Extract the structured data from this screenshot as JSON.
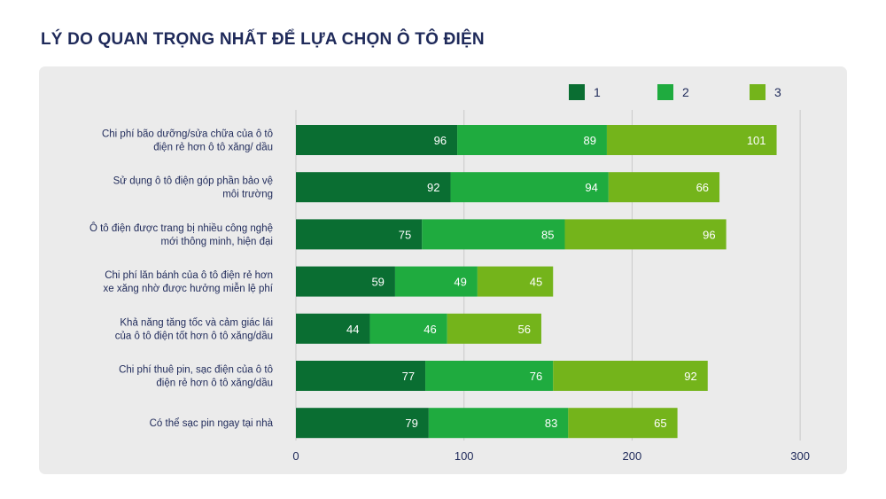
{
  "chart_data": {
    "type": "bar",
    "orientation": "horizontal",
    "stacked": true,
    "title": "LÝ DO QUAN TRỌNG NHẤT ĐỂ LỰA CHỌN Ô TÔ ĐIỆN",
    "xlabel": "",
    "ylabel": "",
    "xlim": [
      0,
      300
    ],
    "xticks": [
      "0",
      "100",
      "200",
      "300"
    ],
    "grid": true,
    "legend_position": "top-right",
    "categories": [
      [
        "Chi phí bão dưỡng/sửa chữa của ô tô",
        "điện rẻ hơn ô tô xăng/ dầu"
      ],
      [
        "Sử dụng ô tô điện góp phần bảo vệ",
        "môi trường"
      ],
      [
        "Ô tô điện được trang bị nhiều công nghệ",
        "mới thông minh, hiện đại"
      ],
      [
        "Chi phí lăn bánh của ô tô điện rẻ hơn",
        "xe xăng nhờ được hưởng miễn lệ phí"
      ],
      [
        "Khả năng tăng tốc và cảm giác lái",
        "của ô tô điện tốt hơn ô tô xăng/dầu"
      ],
      [
        "Chi phí thuê pin, sạc điện của ô tô",
        "điện rẻ hơn ô tô xăng/dầu"
      ],
      [
        "Có thể sạc pin ngay tại nhà"
      ]
    ],
    "series": [
      {
        "name": "1",
        "color": "#0a6e32",
        "values": [
          96,
          92,
          75,
          59,
          44,
          77,
          79
        ]
      },
      {
        "name": "2",
        "color": "#1fab3f",
        "values": [
          89,
          94,
          85,
          49,
          46,
          76,
          83
        ]
      },
      {
        "name": "3",
        "color": "#74b41b",
        "values": [
          101,
          66,
          96,
          45,
          56,
          92,
          65
        ]
      }
    ]
  }
}
